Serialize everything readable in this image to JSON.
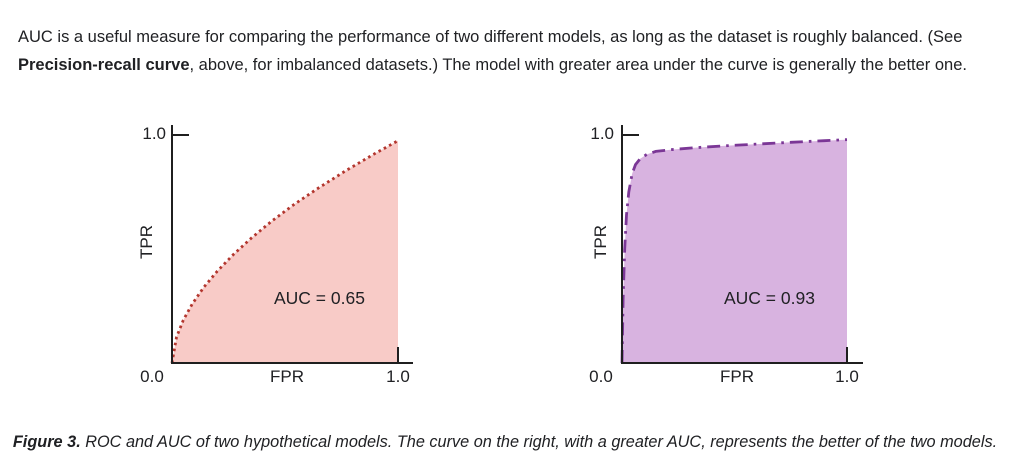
{
  "page": {
    "background": "#ffffff",
    "text_color": "#202124"
  },
  "intro": {
    "line1": "AUC is a useful measure for comparing the performance of two different models, as long as the dataset is roughly balanced. (See",
    "bold_term": "Precision-recall curve",
    "line2_rest": ", above, for imbalanced datasets.) The model with greater area under the curve is generally the better one."
  },
  "caption": {
    "label": "Figure 3.",
    "text": " ROC and AUC of two hypothetical models. The curve on the right, with a greater AUC, represents the better of the two models."
  },
  "chart_data": [
    {
      "type": "area",
      "title": "",
      "xlabel": "FPR",
      "ylabel": "TPR",
      "xlim": [
        0,
        1
      ],
      "ylim": [
        0,
        1
      ],
      "x_tick_labels": [
        "0.0",
        "1.0"
      ],
      "y_tick_labels": [
        "1.0"
      ],
      "annotation": "AUC = 0.65",
      "auc": 0.65,
      "line_style": "dotted",
      "dash_pattern": "2.6 3.4",
      "line_color": "#b3362e",
      "fill_color": "#f8cbc7",
      "legend": "none",
      "grid": false,
      "curve": {
        "x": [
          0,
          0.02,
          0.05,
          0.09,
          0.14,
          0.2,
          0.27,
          0.35,
          0.44,
          0.54,
          0.65,
          0.77,
          0.89,
          1.0
        ],
        "tpr": [
          0,
          0.113,
          0.188,
          0.259,
          0.331,
          0.402,
          0.474,
          0.547,
          0.621,
          0.695,
          0.769,
          0.844,
          0.914,
          0.975
        ]
      }
    },
    {
      "type": "area",
      "title": "",
      "xlabel": "FPR",
      "ylabel": "TPR",
      "xlim": [
        0,
        1
      ],
      "ylim": [
        0,
        1
      ],
      "x_tick_labels": [
        "0.0",
        "1.0"
      ],
      "y_tick_labels": [
        "1.0"
      ],
      "annotation": "AUC = 0.93",
      "auc": 0.93,
      "line_style": "dashdot",
      "dash_pattern": "13 6 2.6 6",
      "line_color": "#7b3796",
      "fill_color": "#d8b3e0",
      "legend": "none",
      "grid": false,
      "curve": {
        "x": [
          0,
          0.005,
          0.012,
          0.02,
          0.03,
          0.045,
          0.06,
          0.08,
          0.11,
          0.15,
          0.22,
          0.32,
          0.45,
          0.6,
          0.75,
          0.9,
          1.0
        ],
        "tpr": [
          0,
          0.28,
          0.5,
          0.65,
          0.75,
          0.83,
          0.87,
          0.895,
          0.915,
          0.928,
          0.936,
          0.944,
          0.952,
          0.96,
          0.968,
          0.975,
          0.98
        ]
      }
    }
  ]
}
